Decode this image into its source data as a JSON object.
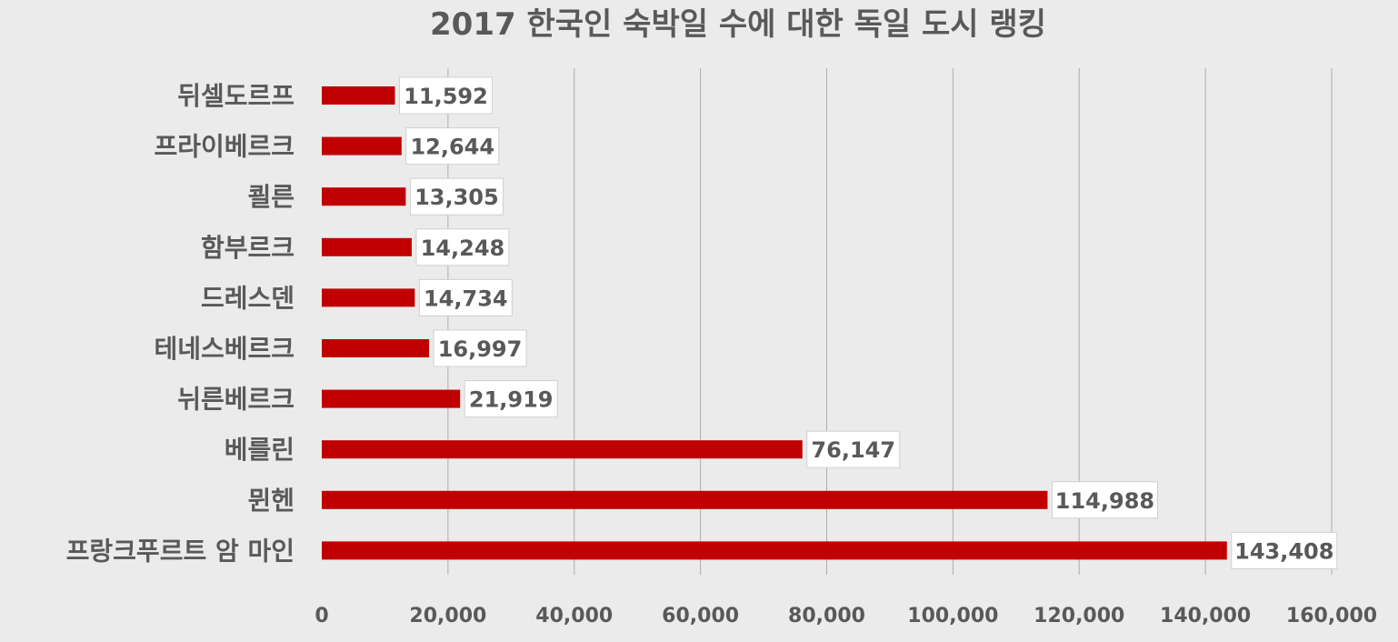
{
  "chart_data": {
    "type": "bar",
    "orientation": "horizontal",
    "title": "2017 한국인 숙박일 수에 대한 독일 도시 랭킹",
    "categories": [
      "뒤셀도르프",
      "프라이베르크",
      "쾰른",
      "함부르크",
      "드레스덴",
      "테네스베르크",
      "뉘른베르크",
      "베를린",
      "뮌헨",
      "프랑크푸르트 암 마인"
    ],
    "values": [
      11592,
      12644,
      13305,
      14248,
      14734,
      16997,
      21919,
      76147,
      114988,
      143408
    ],
    "data_labels": [
      "11,592",
      "12,644",
      "13,305",
      "14,248",
      "14,734",
      "16,997",
      "21,919",
      "76,147",
      "114,988",
      "143,408"
    ],
    "xlim": [
      0,
      160000
    ],
    "x_ticks": [
      0,
      20000,
      40000,
      60000,
      80000,
      100000,
      120000,
      140000,
      160000
    ],
    "x_tick_labels": [
      "0",
      "20,000",
      "40,000",
      "60,000",
      "80,000",
      "100,000",
      "120,000",
      "140,000",
      "160,000"
    ],
    "grid": "vertical",
    "legend": "none",
    "colors": {
      "bar": "#c00000",
      "background": "#ebebeb",
      "text": "#595959",
      "grid": "#b7a8a8"
    }
  }
}
